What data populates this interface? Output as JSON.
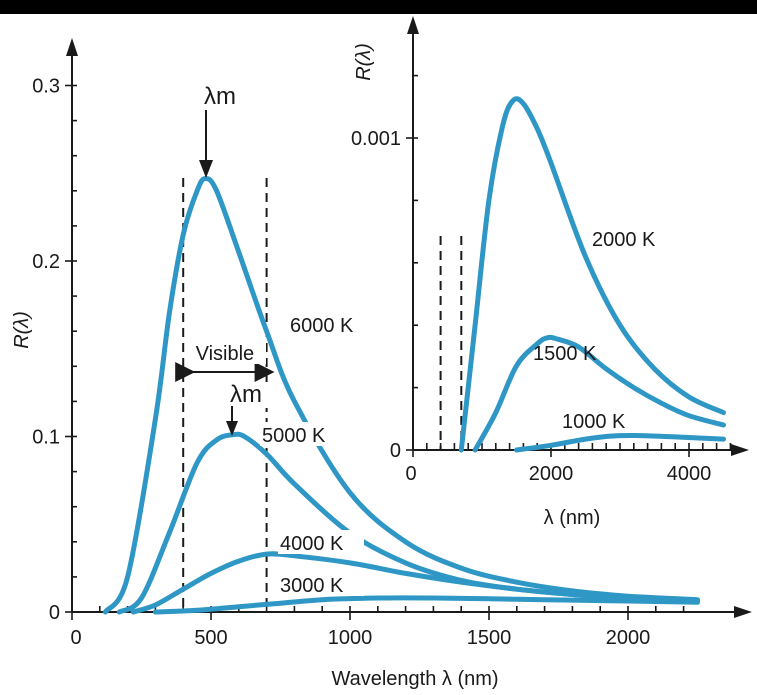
{
  "chart_data": [
    {
      "type": "line",
      "xlabel": "Wavelength λ (nm)",
      "ylabel": "R(λ)",
      "xlim": [
        0,
        2300
      ],
      "ylim": [
        0,
        0.32
      ],
      "xticks": [
        "0",
        "500",
        "1000",
        "1500",
        "2000"
      ],
      "yticks": [
        "0",
        "0.1",
        "0.2",
        "0.3"
      ],
      "series": [
        {
          "name": "6000 K",
          "x": [
            120,
            200,
            300,
            350,
            400,
            450,
            480,
            520,
            600,
            700,
            800,
            1000,
            1200,
            1400,
            1600,
            1800,
            2000,
            2250
          ],
          "y": [
            0,
            0.02,
            0.11,
            0.17,
            0.215,
            0.24,
            0.247,
            0.24,
            0.205,
            0.16,
            0.12,
            0.068,
            0.04,
            0.025,
            0.017,
            0.012,
            0.009,
            0.007
          ]
        },
        {
          "name": "5000 K",
          "x": [
            170,
            250,
            350,
            450,
            520,
            580,
            620,
            700,
            800,
            1000,
            1200,
            1400,
            1600,
            1800,
            2000,
            2250
          ],
          "y": [
            0,
            0.008,
            0.045,
            0.085,
            0.098,
            0.101,
            0.1,
            0.09,
            0.073,
            0.045,
            0.028,
            0.018,
            0.013,
            0.01,
            0.008,
            0.006
          ]
        },
        {
          "name": "4000 K",
          "x": [
            220,
            300,
            400,
            500,
            600,
            700,
            800,
            1000,
            1200,
            1400,
            1600,
            1800,
            2000,
            2250
          ],
          "y": [
            0,
            0.004,
            0.013,
            0.022,
            0.029,
            0.033,
            0.032,
            0.028,
            0.022,
            0.017,
            0.013,
            0.01,
            0.008,
            0.006
          ]
        },
        {
          "name": "3000 K",
          "x": [
            300,
            450,
            600,
            750,
            900,
            1100,
            1300,
            1500,
            1700,
            1900,
            2100,
            2250
          ],
          "y": [
            0,
            0.001,
            0.003,
            0.005,
            0.007,
            0.008,
            0.008,
            0.0075,
            0.007,
            0.0065,
            0.006,
            0.0055
          ]
        }
      ],
      "annotations": {
        "peak_label_6000": "λm",
        "peak_label_5000": "λm",
        "visible_label": "Visible",
        "visible_range": [
          400,
          700
        ]
      }
    },
    {
      "type": "line",
      "xlabel": "λ (nm)",
      "ylabel": "R(λ)",
      "xlim": [
        0,
        4600
      ],
      "ylim": [
        0,
        0.0013
      ],
      "xticks": [
        "0",
        "2000",
        "4000"
      ],
      "yticks": [
        "0",
        "0.001"
      ],
      "visible_range": [
        400,
        700
      ],
      "series": [
        {
          "name": "2000 K",
          "x": [
            700,
            900,
            1100,
            1300,
            1450,
            1600,
            1800,
            2000,
            2500,
            3000,
            3500,
            4000,
            4500
          ],
          "y": [
            0,
            0.0004,
            0.0008,
            0.00104,
            0.00112,
            0.00111,
            0.00103,
            0.00092,
            0.00062,
            0.0004,
            0.00026,
            0.00017,
            0.00012
          ]
        },
        {
          "name": "1500 K",
          "x": [
            900,
            1200,
            1500,
            1800,
            1950,
            2100,
            2400,
            2800,
            3200,
            3600,
            4000,
            4500
          ],
          "y": [
            0,
            0.00012,
            0.00027,
            0.00034,
            0.00036,
            0.000355,
            0.00033,
            0.00026,
            0.0002,
            0.00015,
            0.00011,
            8e-05
          ]
        },
        {
          "name": "1000 K",
          "x": [
            1500,
            2000,
            2500,
            2900,
            3300,
            3800,
            4500
          ],
          "y": [
            0,
            1.5e-05,
            3.5e-05,
            4.5e-05,
            4.6e-05,
            4.2e-05,
            3.5e-05
          ]
        }
      ]
    }
  ]
}
